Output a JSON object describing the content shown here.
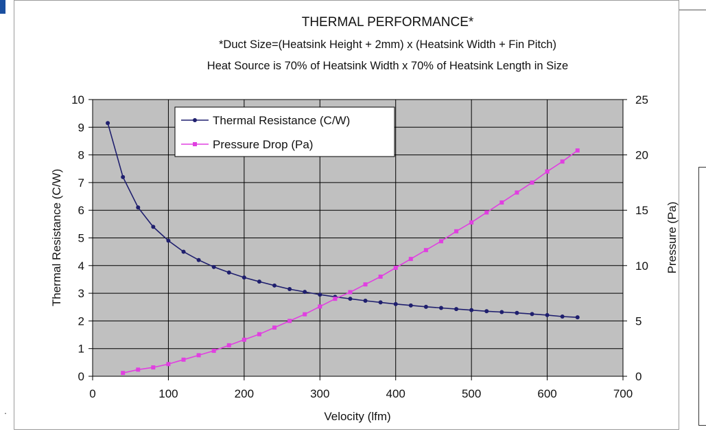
{
  "chart_data": {
    "type": "line",
    "title": "THERMAL PERFORMANCE*",
    "subtitle_lines": [
      "*Duct Size=(Heatsink Height + 2mm) x (Heatsink Width + Fin Pitch)",
      "Heat Source is 70% of Heatsink Width x 70% of Heatsink Length in Size"
    ],
    "xlabel": "Velocity (lfm)",
    "ylabel_left": "Thermal Resistance (C/W)",
    "ylabel_right": "Pressure (Pa)",
    "xlim": [
      0,
      700
    ],
    "ylim_left": [
      0,
      10
    ],
    "ylim_right": [
      0,
      25
    ],
    "x_ticks": [
      "0",
      "100",
      "200",
      "300",
      "400",
      "500",
      "600",
      "700"
    ],
    "y_left_ticks": [
      "0",
      "1",
      "2",
      "3",
      "4",
      "5",
      "6",
      "7",
      "8",
      "9",
      "10"
    ],
    "y_right_ticks": [
      "0",
      "5",
      "10",
      "15",
      "20",
      "25"
    ],
    "grid": true,
    "legend_position": "top-left",
    "plot_background": "#c0c0c0",
    "series": [
      {
        "name": "Thermal Resistance (C/W)",
        "axis": "left",
        "color": "#1f1f6e",
        "marker": "circle",
        "x": [
          20,
          40,
          60,
          80,
          100,
          120,
          140,
          160,
          180,
          200,
          220,
          240,
          260,
          280,
          300,
          320,
          340,
          360,
          380,
          400,
          420,
          440,
          460,
          480,
          500,
          520,
          540,
          560,
          580,
          600,
          620,
          640
        ],
        "y": [
          9.15,
          7.2,
          6.1,
          5.4,
          4.9,
          4.5,
          4.2,
          3.95,
          3.75,
          3.57,
          3.42,
          3.28,
          3.15,
          3.05,
          2.95,
          2.87,
          2.8,
          2.73,
          2.67,
          2.61,
          2.56,
          2.51,
          2.47,
          2.43,
          2.39,
          2.35,
          2.32,
          2.29,
          2.25,
          2.21,
          2.16,
          2.13
        ]
      },
      {
        "name": "Pressure Drop (Pa)",
        "axis": "right",
        "color": "#e040e0",
        "marker": "square",
        "x": [
          40,
          60,
          80,
          100,
          120,
          140,
          160,
          180,
          200,
          220,
          240,
          260,
          280,
          300,
          320,
          340,
          360,
          380,
          400,
          420,
          440,
          460,
          480,
          500,
          520,
          540,
          560,
          580,
          600,
          620,
          640
        ],
        "y": [
          0.3,
          0.6,
          0.8,
          1.1,
          1.5,
          1.9,
          2.3,
          2.8,
          3.3,
          3.8,
          4.4,
          5.0,
          5.6,
          6.3,
          7.0,
          7.6,
          8.3,
          9.0,
          9.8,
          10.6,
          11.4,
          12.2,
          13.1,
          13.9,
          14.8,
          15.7,
          16.6,
          17.5,
          18.5,
          19.4,
          20.4
        ]
      }
    ]
  }
}
